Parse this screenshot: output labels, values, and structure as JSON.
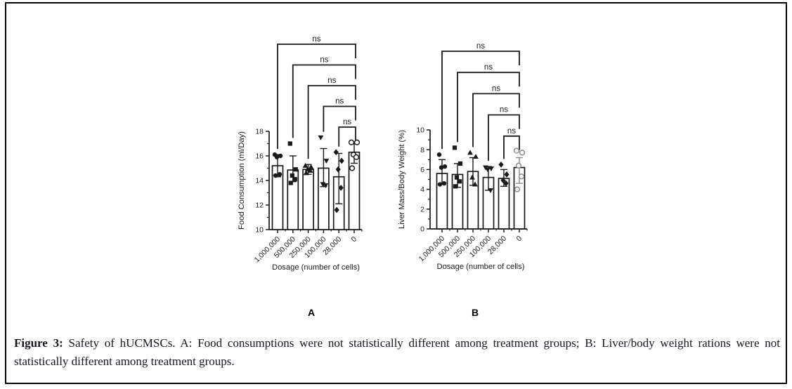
{
  "caption": {
    "label": "Figure 3:",
    "text": " Safety of hUCMSCs. A: Food consumptions were not statistically different among treatment groups; B: Liver/body weight rations were not statistically different among treatment groups."
  },
  "colors": {
    "ink": "#1a1a1a",
    "zero_group_gray": "#8c8c8c",
    "bar_fill": "#ffffff"
  },
  "chart_data": [
    {
      "type": "bar",
      "panel_label": "A",
      "title": "",
      "xlabel": "Dosage (number of cells)",
      "ylabel": "Food Consumption (ml/Day)",
      "categories": [
        "1,000,000",
        "500,000",
        "250,000",
        "100,000",
        "28,000",
        "0"
      ],
      "markers": [
        "circle-filled",
        "square-filled",
        "triangle-up-filled",
        "triangle-down-filled",
        "diamond-filled",
        "circle-open"
      ],
      "group_colors": [
        "#1a1a1a",
        "#1a1a1a",
        "#1a1a1a",
        "#1a1a1a",
        "#1a1a1a",
        "#1a1a1a"
      ],
      "means": [
        15.2,
        14.85,
        14.9,
        15.0,
        14.3,
        16.3
      ],
      "error_low": [
        14.3,
        13.9,
        14.5,
        13.5,
        12.1,
        15.4
      ],
      "error_high": [
        16.1,
        16.0,
        15.3,
        16.6,
        16.2,
        17.0
      ],
      "points": [
        [
          16.1,
          16.0,
          15.9,
          14.5,
          14.4
        ],
        [
          17.0,
          14.9,
          14.4,
          14.1,
          13.8
        ],
        [
          15.2,
          15.1,
          14.9,
          14.8,
          14.6
        ],
        [
          17.5,
          15.6,
          13.7,
          13.6
        ],
        [
          16.3,
          15.6,
          14.9,
          13.4,
          11.6
        ],
        [
          17.1,
          17.1,
          16.1,
          15.9,
          15.0
        ]
      ],
      "ylim": [
        10,
        18
      ],
      "yticks": [
        10,
        12,
        14,
        16,
        18
      ],
      "grid": false,
      "legend": "none",
      "brackets": [
        {
          "from": 0,
          "to": 5,
          "label": "ns"
        },
        {
          "from": 1,
          "to": 5,
          "label": "ns"
        },
        {
          "from": 2,
          "to": 5,
          "label": "ns"
        },
        {
          "from": 3,
          "to": 5,
          "label": "ns"
        },
        {
          "from": 4,
          "to": 5,
          "label": "ns"
        }
      ]
    },
    {
      "type": "bar",
      "panel_label": "B",
      "title": "",
      "xlabel": "Dosage (number of cells)",
      "ylabel": "Liver Mass/Body Weight (%)",
      "categories": [
        "1,000,000",
        "500,000",
        "250,000",
        "100,000",
        "28,000",
        "0"
      ],
      "markers": [
        "circle-filled",
        "square-filled",
        "triangle-up-filled",
        "triangle-down-filled",
        "diamond-filled",
        "circle-open"
      ],
      "group_colors": [
        "#1a1a1a",
        "#1a1a1a",
        "#1a1a1a",
        "#1a1a1a",
        "#1a1a1a",
        "#8c8c8c"
      ],
      "means": [
        5.6,
        5.5,
        5.8,
        5.2,
        5.1,
        6.2
      ],
      "error_low": [
        4.5,
        4.2,
        4.4,
        3.9,
        4.3,
        4.6
      ],
      "error_high": [
        7.0,
        6.6,
        7.2,
        6.3,
        6.0,
        7.2
      ],
      "points": [
        [
          7.5,
          6.3,
          6.2,
          4.6,
          4.5
        ],
        [
          8.2,
          6.6,
          5.2,
          4.8,
          4.3
        ],
        [
          7.7,
          7.3,
          5.2,
          4.5
        ],
        [
          6.2,
          6.1,
          6.0,
          3.9
        ],
        [
          6.5,
          5.5,
          4.9,
          4.6
        ],
        [
          7.9,
          7.7,
          6.4,
          5.3,
          4.0
        ]
      ],
      "ylim": [
        0,
        10
      ],
      "yticks": [
        0,
        2,
        4,
        6,
        8,
        10
      ],
      "grid": false,
      "legend": "none",
      "brackets": [
        {
          "from": 0,
          "to": 5,
          "label": "ns"
        },
        {
          "from": 1,
          "to": 5,
          "label": "ns"
        },
        {
          "from": 2,
          "to": 5,
          "label": "ns"
        },
        {
          "from": 3,
          "to": 5,
          "label": "ns"
        },
        {
          "from": 4,
          "to": 5,
          "label": "ns"
        }
      ]
    }
  ]
}
